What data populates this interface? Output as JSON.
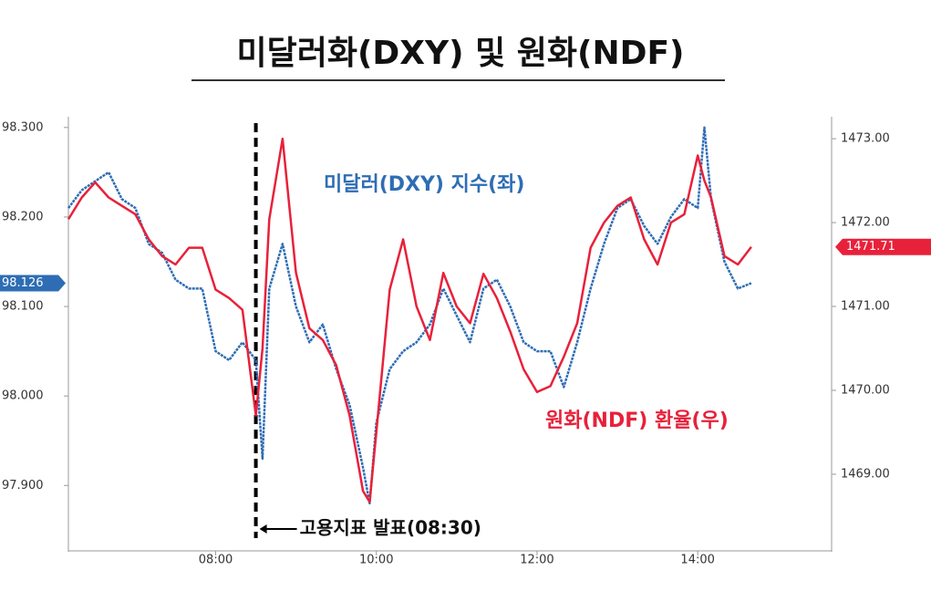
{
  "chart_data": {
    "type": "line",
    "title": "미달러화(DXY) 및 원화(NDF)",
    "x": [
      370,
      380,
      390,
      400,
      410,
      420,
      430,
      440,
      450,
      460,
      470,
      480,
      490,
      500,
      510,
      515,
      520,
      530,
      540,
      550,
      560,
      570,
      580,
      590,
      595,
      600,
      610,
      620,
      630,
      640,
      650,
      660,
      670,
      680,
      690,
      700,
      710,
      720,
      730,
      740,
      750,
      760,
      770,
      780,
      790,
      800,
      810,
      820,
      830,
      840,
      845,
      850,
      860,
      870,
      880
    ],
    "xlim": [
      370,
      940
    ],
    "xticks": [
      {
        "value": 480,
        "label": "08:00"
      },
      {
        "value": 600,
        "label": "10:00"
      },
      {
        "value": 720,
        "label": "12:00"
      },
      {
        "value": 840,
        "label": "14:00"
      }
    ],
    "ylim": [
      97.831,
      98.31
    ],
    "yticks": [
      {
        "value": 98.3,
        "label": "98.300"
      },
      {
        "value": 98.2,
        "label": "98.200"
      },
      {
        "value": 98.1,
        "label": "98.100"
      },
      {
        "value": 98.0,
        "label": "98.000"
      },
      {
        "value": 97.9,
        "label": "97.900"
      }
    ],
    "y2lim": [
      1468.13,
      1473.24
    ],
    "y2ticks": [
      {
        "value": 1473,
        "label": "1473.00"
      },
      {
        "value": 1472,
        "label": "1472.00"
      },
      {
        "value": 1471,
        "label": "1471.00"
      },
      {
        "value": 1470,
        "label": "1470.00"
      },
      {
        "value": 1469,
        "label": "1469.00"
      }
    ],
    "series": [
      {
        "name": "미달러(DXY) 지수(좌)",
        "color": "#2e6db4",
        "axis": "y",
        "last_value": {
          "value": 98.126,
          "label": "98.126"
        },
        "values": [
          98.21,
          98.23,
          98.24,
          98.25,
          98.22,
          98.21,
          98.17,
          98.16,
          98.13,
          98.12,
          98.12,
          98.05,
          98.04,
          98.06,
          98.04,
          97.93,
          98.12,
          98.17,
          98.1,
          98.06,
          98.08,
          98.03,
          97.99,
          97.92,
          97.88,
          97.97,
          98.03,
          98.05,
          98.06,
          98.08,
          98.12,
          98.09,
          98.06,
          98.12,
          98.13,
          98.1,
          98.06,
          98.05,
          98.05,
          98.01,
          98.06,
          98.12,
          98.17,
          98.21,
          98.22,
          98.19,
          98.17,
          98.2,
          98.22,
          98.21,
          98.3,
          98.22,
          98.15,
          98.12,
          98.126
        ]
      },
      {
        "name": "원화(NDF) 환율(우)",
        "color": "#e8213a",
        "axis": "y2",
        "last_value": {
          "value": 1471.71,
          "label": "1471.71"
        },
        "values": [
          1472.04,
          1472.3,
          1472.48,
          1472.3,
          1472.2,
          1472.1,
          1471.8,
          1471.6,
          1471.5,
          1471.7,
          1471.7,
          1471.2,
          1471.1,
          1470.96,
          1469.7,
          1470.5,
          1472.04,
          1473.0,
          1471.4,
          1470.74,
          1470.6,
          1470.3,
          1469.7,
          1468.8,
          1468.67,
          1469.5,
          1471.2,
          1471.8,
          1471.0,
          1470.6,
          1471.4,
          1471.0,
          1470.8,
          1471.39,
          1471.1,
          1470.7,
          1470.25,
          1469.98,
          1470.05,
          1470.4,
          1470.8,
          1471.7,
          1472.0,
          1472.2,
          1472.3,
          1471.8,
          1471.5,
          1472.0,
          1472.1,
          1472.8,
          1472.5,
          1472.3,
          1471.6,
          1471.5,
          1471.71
        ]
      }
    ],
    "event": {
      "x": 510,
      "label": "고용지표 발표(08:30)"
    }
  }
}
